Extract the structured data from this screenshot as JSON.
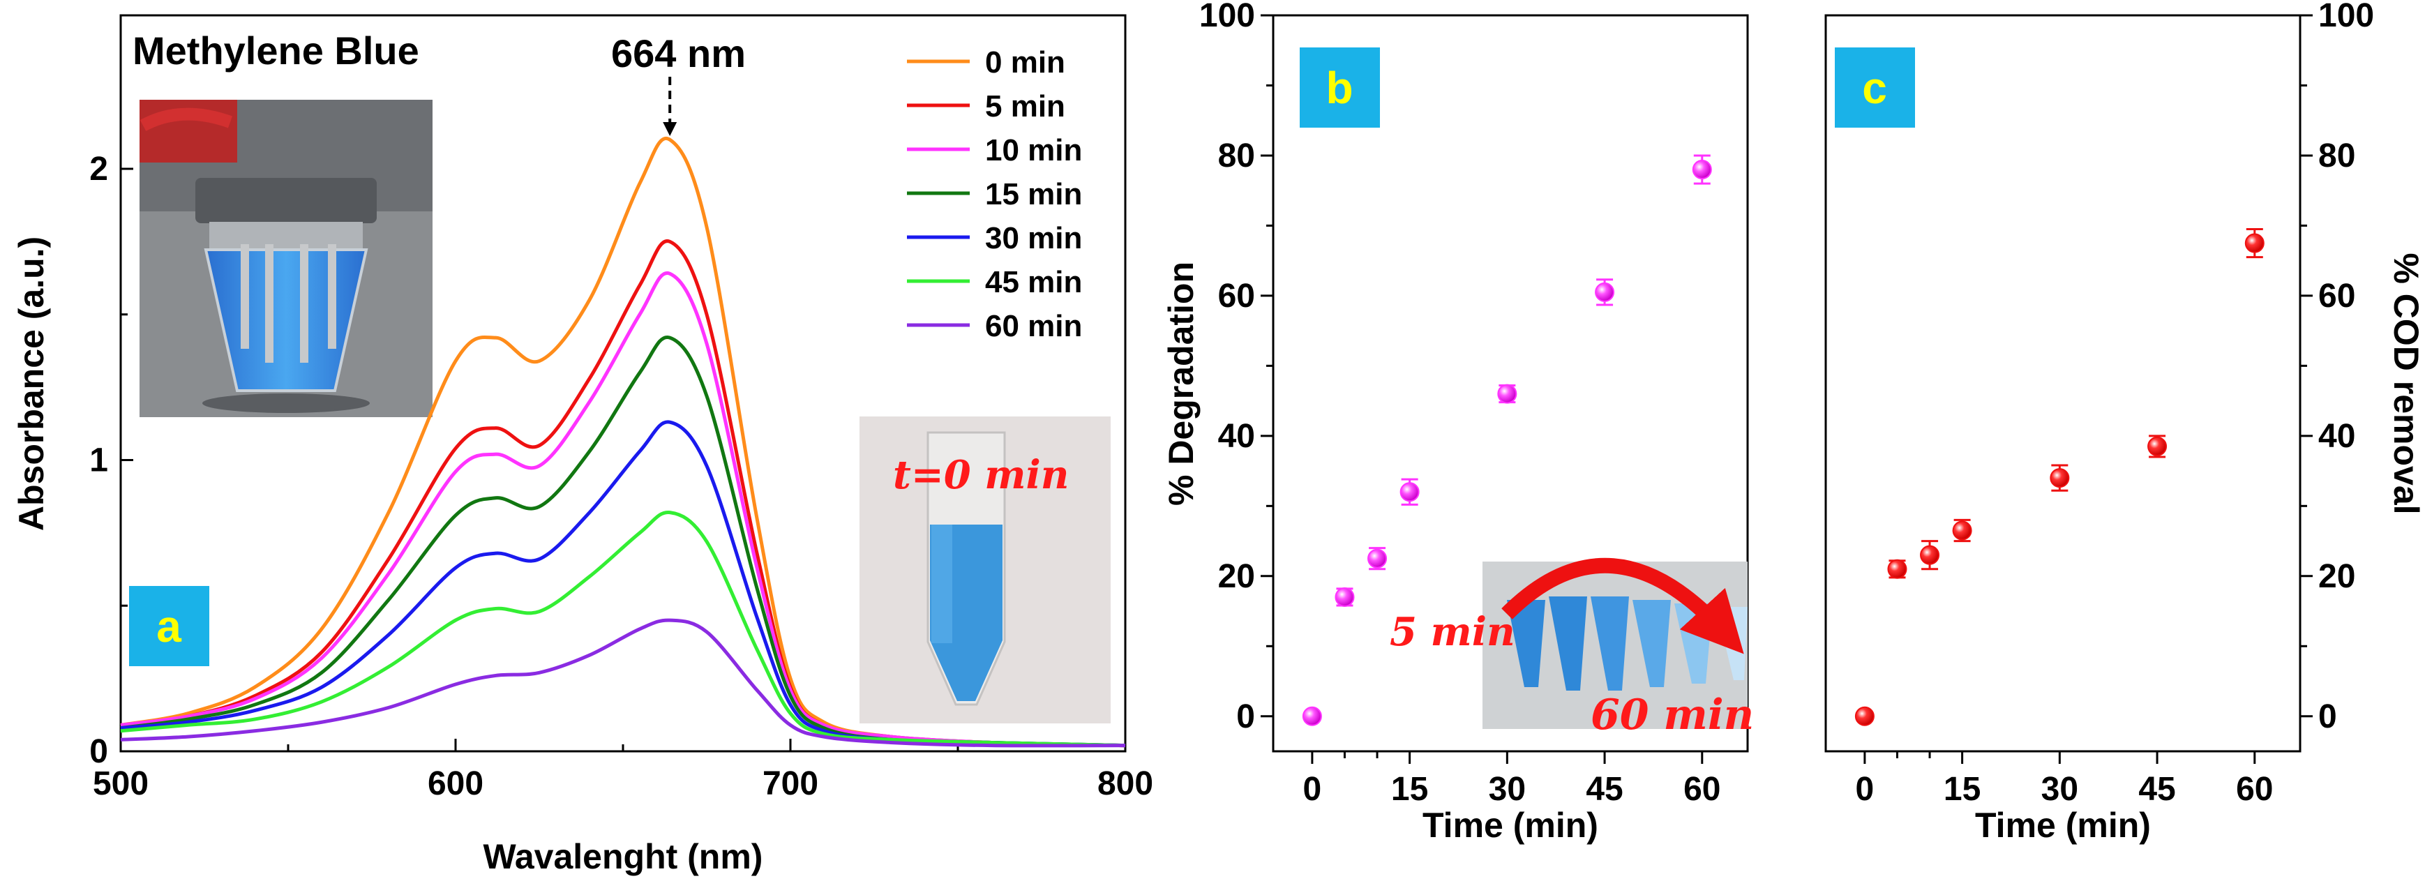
{
  "chart_data": [
    {
      "panel": "a",
      "type": "line",
      "title": "Methylene Blue",
      "xlabel": "Wavalenght (nm)",
      "ylabel": "Absorbance (a.u.)",
      "xlim": [
        500,
        800
      ],
      "ylim": [
        0,
        2.5
      ],
      "xticks": [
        500,
        600,
        700,
        800
      ],
      "yticks": [
        0,
        1,
        2
      ],
      "panel_label": "a",
      "peak_annotation": "664 nm",
      "peak_x": 664,
      "photo_label": "t=0 min",
      "x": [
        500,
        520,
        540,
        560,
        580,
        600,
        612,
        625,
        640,
        655,
        664,
        675,
        690,
        700,
        710,
        730,
        760,
        800
      ],
      "series": [
        {
          "name": "0 min",
          "color": "#ff8c1a",
          "values": [
            0.09,
            0.13,
            0.22,
            0.42,
            0.82,
            1.34,
            1.42,
            1.34,
            1.55,
            1.95,
            2.1,
            1.8,
            0.8,
            0.25,
            0.1,
            0.05,
            0.03,
            0.02
          ]
        },
        {
          "name": "5 min",
          "color": "#ee1111",
          "values": [
            0.09,
            0.12,
            0.19,
            0.34,
            0.66,
            1.04,
            1.11,
            1.05,
            1.28,
            1.6,
            1.75,
            1.5,
            0.68,
            0.22,
            0.09,
            0.05,
            0.03,
            0.02
          ]
        },
        {
          "name": "10 min",
          "color": "#ff33ff",
          "values": [
            0.09,
            0.12,
            0.18,
            0.32,
            0.61,
            0.96,
            1.02,
            0.98,
            1.2,
            1.5,
            1.64,
            1.4,
            0.63,
            0.21,
            0.09,
            0.05,
            0.03,
            0.02
          ]
        },
        {
          "name": "15 min",
          "color": "#117711",
          "values": [
            0.08,
            0.11,
            0.16,
            0.27,
            0.52,
            0.81,
            0.87,
            0.84,
            1.03,
            1.3,
            1.42,
            1.22,
            0.56,
            0.19,
            0.08,
            0.04,
            0.03,
            0.02
          ]
        },
        {
          "name": "30 min",
          "color": "#1a1aee",
          "values": [
            0.08,
            0.1,
            0.14,
            0.22,
            0.4,
            0.63,
            0.68,
            0.66,
            0.82,
            1.03,
            1.13,
            0.98,
            0.46,
            0.16,
            0.07,
            0.04,
            0.03,
            0.02
          ]
        },
        {
          "name": "45 min",
          "color": "#33ee33",
          "values": [
            0.07,
            0.09,
            0.11,
            0.17,
            0.29,
            0.45,
            0.49,
            0.48,
            0.6,
            0.75,
            0.82,
            0.72,
            0.35,
            0.13,
            0.06,
            0.04,
            0.03,
            0.02
          ]
        },
        {
          "name": "60 min",
          "color": "#8a2be2",
          "values": [
            0.04,
            0.05,
            0.07,
            0.1,
            0.15,
            0.23,
            0.26,
            0.27,
            0.33,
            0.42,
            0.45,
            0.41,
            0.21,
            0.09,
            0.05,
            0.03,
            0.02,
            0.02
          ]
        }
      ]
    },
    {
      "panel": "b",
      "type": "scatter",
      "title": "",
      "xlabel": "Time (min)",
      "ylabel": "% Degradation",
      "xlim": [
        -6,
        67
      ],
      "ylim": [
        -5,
        100
      ],
      "xticks": [
        0,
        15,
        30,
        45,
        60
      ],
      "minor_xticks": [
        5,
        10
      ],
      "yticks": [
        0,
        20,
        40,
        60,
        80,
        100
      ],
      "panel_label": "b",
      "marker_color": "#ff33ff",
      "photo_label_start": "5 min",
      "photo_label_end": "60 min",
      "series": [
        {
          "name": "% Degradation",
          "x": [
            0,
            5,
            10,
            15,
            30,
            45,
            60
          ],
          "values": [
            0,
            17,
            22.5,
            32,
            46,
            60.5,
            78
          ],
          "errors": [
            0,
            1.2,
            1.5,
            1.8,
            1.2,
            1.8,
            2.0
          ]
        }
      ]
    },
    {
      "panel": "c",
      "type": "scatter",
      "title": "",
      "xlabel": "Time (min)",
      "ylabel": "% COD removal",
      "xlim": [
        -6,
        67
      ],
      "ylim": [
        -5,
        100
      ],
      "xticks": [
        0,
        15,
        30,
        45,
        60
      ],
      "minor_xticks": [
        5,
        10
      ],
      "yticks": [
        0,
        20,
        40,
        60,
        80,
        100
      ],
      "panel_label": "c",
      "marker_color": "#ee1111",
      "series": [
        {
          "name": "% COD removal",
          "x": [
            0,
            5,
            10,
            15,
            30,
            45,
            60
          ],
          "values": [
            0,
            21,
            23,
            26.5,
            34,
            38.5,
            67.5
          ],
          "errors": [
            0,
            1.2,
            2.0,
            1.5,
            1.8,
            1.5,
            2.0
          ]
        }
      ]
    }
  ]
}
